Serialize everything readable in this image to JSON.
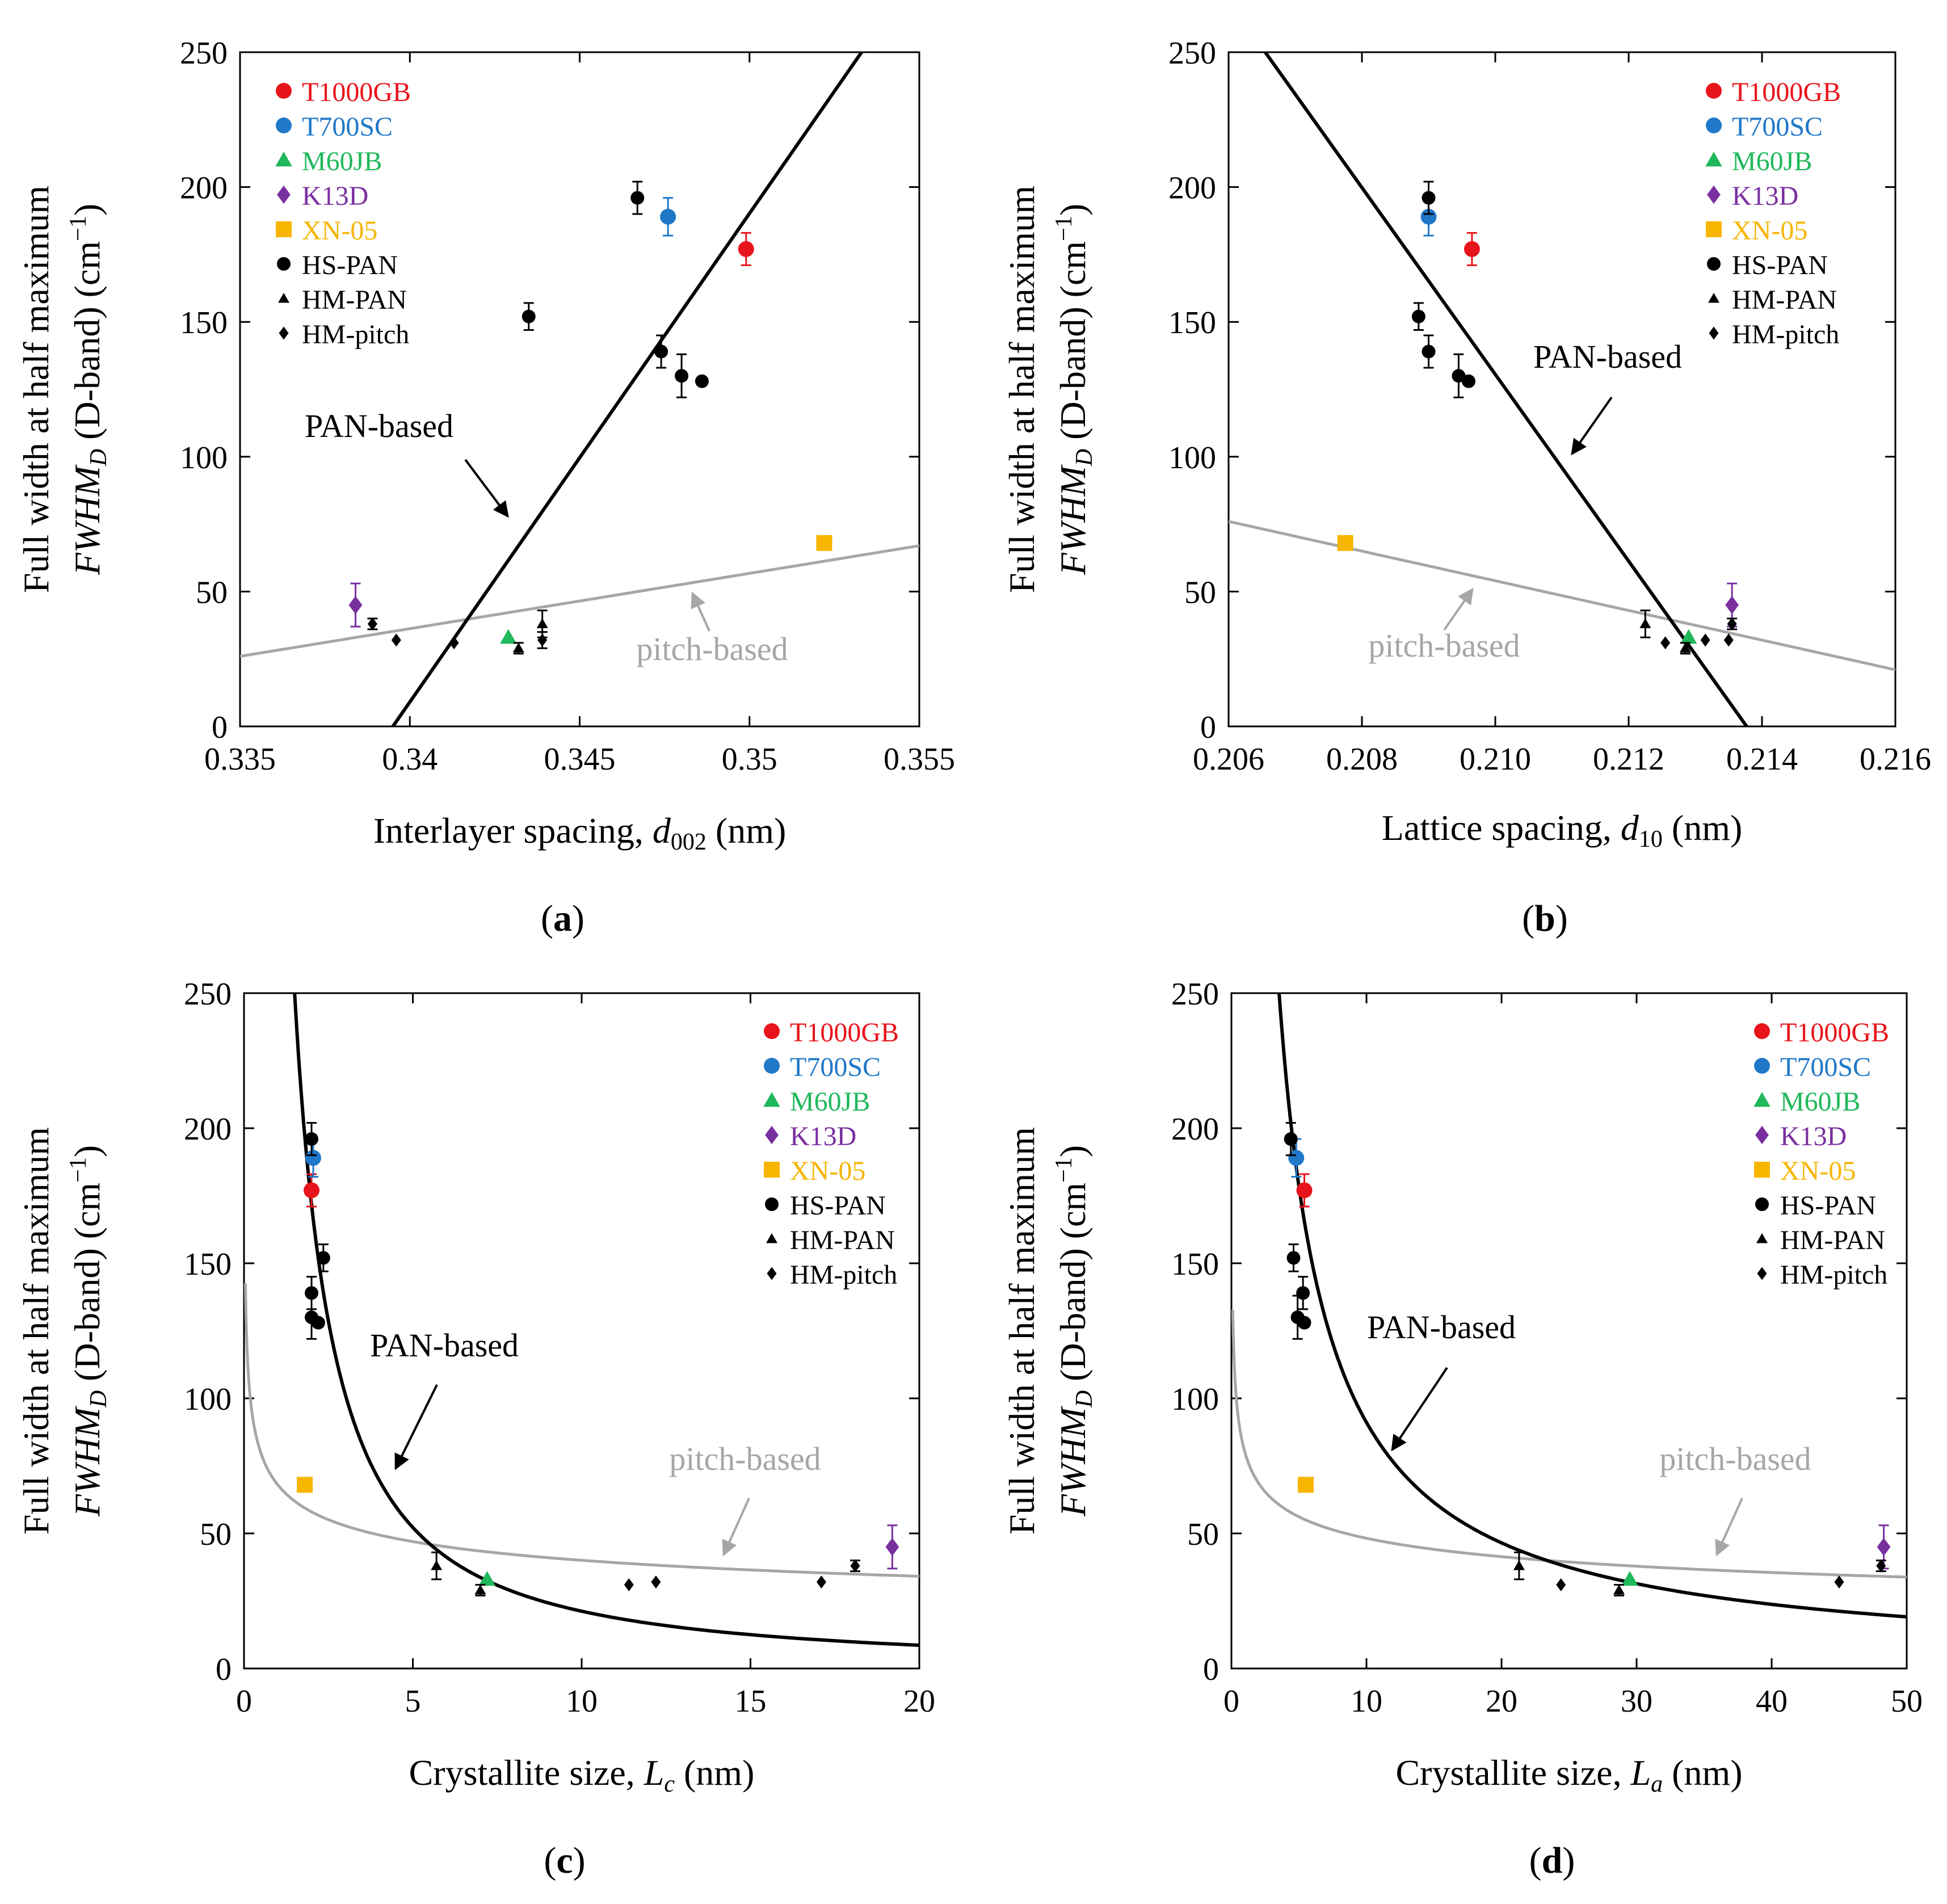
{
  "figure": {
    "colors": {
      "T1000GB": "#e8141b",
      "T700SC": "#1f78c8",
      "M60JB": "#1fb85a",
      "K13D": "#7a2fa0",
      "XN-05": "#f7b500",
      "black": "#000000",
      "pitch_line": "#a6a6a6"
    }
  },
  "chart_data": [
    {
      "id": "a",
      "type": "scatter",
      "panel_label": "a",
      "xlabel": "Interlayer spacing, ",
      "xlabel_italic": "d",
      "xlabel_sub": "002",
      "xlabel_unit": " (nm)",
      "ylabel_line1": "Full width at half maximum",
      "ylabel_line2_italic": "FWHM",
      "ylabel_line2_sub": "D",
      "ylabel_line2_rest": " (D-band) (cm",
      "ylabel_line2_sup": "−1",
      "ylabel_line2_end": ")",
      "xlim": [
        0.335,
        0.355
      ],
      "ylim": [
        0,
        250
      ],
      "xticks": [
        0.335,
        0.34,
        0.345,
        0.35,
        0.355
      ],
      "xtick_labels": [
        "0.335",
        "0.34",
        "0.345",
        "0.35",
        "0.355"
      ],
      "yticks": [
        0,
        50,
        100,
        150,
        200,
        250
      ],
      "ytick_labels": [
        "0",
        "50",
        "100",
        "150",
        "200",
        "250"
      ],
      "legend_position": "top-left",
      "legend": [
        "T1000GB",
        "T700SC",
        "M60JB",
        "K13D",
        "XN-05",
        "HS-PAN",
        "HM-PAN",
        "HM-pitch"
      ],
      "annotations": {
        "pan": "PAN-based",
        "pitch": "pitch-based"
      },
      "fits": {
        "pan": {
          "type": "linear",
          "p1": [
            0.3395,
            0
          ],
          "p2": [
            0.3533,
            250
          ]
        },
        "pitch": {
          "type": "linear",
          "p1": [
            0.335,
            26
          ],
          "p2": [
            0.355,
            67
          ]
        }
      },
      "series": [
        {
          "name": "T1000GB",
          "marker": "circle",
          "color": "T1000GB",
          "points": [
            [
              0.3499,
              177,
              6
            ]
          ]
        },
        {
          "name": "T700SC",
          "marker": "circle",
          "color": "T700SC",
          "points": [
            [
              0.3476,
              189,
              7
            ]
          ]
        },
        {
          "name": "M60JB",
          "marker": "triangle",
          "color": "M60JB",
          "points": [
            [
              0.3429,
              33,
              0
            ]
          ]
        },
        {
          "name": "K13D",
          "marker": "diamond",
          "color": "K13D",
          "points": [
            [
              0.3384,
              45,
              8
            ]
          ]
        },
        {
          "name": "XN-05",
          "marker": "square",
          "color": "XN-05",
          "points": [
            [
              0.3522,
              68,
              0
            ]
          ]
        },
        {
          "name": "HS-PAN",
          "marker": "circle",
          "color": "black",
          "points": [
            [
              0.3467,
              196,
              6
            ],
            [
              0.3435,
              152,
              5
            ],
            [
              0.3474,
              139,
              6
            ],
            [
              0.348,
              130,
              8
            ],
            [
              0.3486,
              128,
              0
            ]
          ]
        },
        {
          "name": "HM-PAN",
          "marker": "triangle",
          "color": "black",
          "points": [
            [
              0.3439,
              38,
              5
            ],
            [
              0.3432,
              29,
              2
            ]
          ]
        },
        {
          "name": "HM-pitch",
          "marker": "diamond",
          "color": "black",
          "points": [
            [
              0.3389,
              38,
              2
            ],
            [
              0.3396,
              32,
              0
            ],
            [
              0.3413,
              31,
              0
            ],
            [
              0.3439,
              32,
              3
            ]
          ]
        }
      ]
    },
    {
      "id": "b",
      "type": "scatter",
      "panel_label": "b",
      "xlabel": "Lattice spacing, ",
      "xlabel_italic": "d",
      "xlabel_sub": "10",
      "xlabel_unit": " (nm)",
      "ylabel_line1": "Full width at half maximum",
      "ylabel_line2_italic": "FWHM",
      "ylabel_line2_sub": "D",
      "ylabel_line2_rest": " (D-band) (cm",
      "ylabel_line2_sup": "−1",
      "ylabel_line2_end": ")",
      "xlim": [
        0.206,
        0.216
      ],
      "ylim": [
        0,
        250
      ],
      "xticks": [
        0.206,
        0.208,
        0.21,
        0.212,
        0.214,
        0.216
      ],
      "xtick_labels": [
        "0.206",
        "0.208",
        "0.210",
        "0.212",
        "0.214",
        "0.216"
      ],
      "yticks": [
        0,
        50,
        100,
        150,
        200,
        250
      ],
      "ytick_labels": [
        "0",
        "50",
        "100",
        "150",
        "200",
        "250"
      ],
      "legend_position": "top-right",
      "legend": [
        "T1000GB",
        "T700SC",
        "M60JB",
        "K13D",
        "XN-05",
        "HS-PAN",
        "HM-PAN",
        "HM-pitch"
      ],
      "annotations": {
        "pan": "PAN-based",
        "pitch": "pitch-based"
      },
      "fits": {
        "pan": {
          "type": "linear",
          "p1": [
            0.20655,
            250
          ],
          "p2": [
            0.21377,
            0
          ]
        },
        "pitch": {
          "type": "linear",
          "p1": [
            0.206,
            76
          ],
          "p2": [
            0.216,
            21
          ]
        }
      },
      "series": [
        {
          "name": "T1000GB",
          "marker": "circle",
          "color": "T1000GB",
          "points": [
            [
              0.20965,
              177,
              6
            ]
          ]
        },
        {
          "name": "T700SC",
          "marker": "circle",
          "color": "T700SC",
          "points": [
            [
              0.209,
              189,
              7
            ]
          ]
        },
        {
          "name": "M60JB",
          "marker": "triangle",
          "color": "M60JB",
          "points": [
            [
              0.2129,
              33,
              0
            ]
          ]
        },
        {
          "name": "K13D",
          "marker": "diamond",
          "color": "K13D",
          "points": [
            [
              0.21355,
              45,
              8
            ]
          ]
        },
        {
          "name": "XN-05",
          "marker": "square",
          "color": "XN-05",
          "points": [
            [
              0.20775,
              68,
              0
            ]
          ]
        },
        {
          "name": "HS-PAN",
          "marker": "circle",
          "color": "black",
          "points": [
            [
              0.209,
              196,
              6
            ],
            [
              0.20885,
              152,
              5
            ],
            [
              0.209,
              139,
              6
            ],
            [
              0.20945,
              130,
              8
            ],
            [
              0.2096,
              128,
              0
            ]
          ]
        },
        {
          "name": "HM-PAN",
          "marker": "triangle",
          "color": "black",
          "points": [
            [
              0.21225,
              38,
              5
            ],
            [
              0.21285,
              29,
              2
            ]
          ]
        },
        {
          "name": "HM-pitch",
          "marker": "diamond",
          "color": "black",
          "points": [
            [
              0.21355,
              38,
              2
            ],
            [
              0.2135,
              32,
              0
            ],
            [
              0.21315,
              32,
              0
            ],
            [
              0.21255,
              31,
              0
            ]
          ]
        }
      ]
    },
    {
      "id": "c",
      "type": "scatter",
      "panel_label": "c",
      "xlabel": "Crystallite size, ",
      "xlabel_italic": "L",
      "xlabel_sub": "c",
      "xlabel_unit": " (nm)",
      "ylabel_line1": "Full width at half maximum",
      "ylabel_line2_italic": "FWHM",
      "ylabel_line2_sub": "D",
      "ylabel_line2_rest": " (D-band) (cm",
      "ylabel_line2_sup": "−1",
      "ylabel_line2_end": ")",
      "xlim": [
        0,
        20
      ],
      "ylim": [
        0,
        250
      ],
      "xticks": [
        0,
        5,
        10,
        15,
        20
      ],
      "xtick_labels": [
        "0",
        "5",
        "10",
        "15",
        "20"
      ],
      "yticks": [
        0,
        50,
        100,
        150,
        200,
        250
      ],
      "ytick_labels": [
        "0",
        "50",
        "100",
        "150",
        "200",
        "250"
      ],
      "legend_position": "top-right",
      "legend": [
        "T1000GB",
        "T700SC",
        "M60JB",
        "K13D",
        "XN-05",
        "HS-PAN",
        "HM-PAN",
        "HM-pitch"
      ],
      "annotations": {
        "pan": "PAN-based",
        "pitch": "pitch-based"
      },
      "fits": {
        "pan": {
          "type": "power",
          "a": 423,
          "b": 1.3
        },
        "pitch": {
          "type": "power",
          "a": 68,
          "b": 0.23
        }
      },
      "series": [
        {
          "name": "T1000GB",
          "marker": "circle",
          "color": "T1000GB",
          "points": [
            [
              2.0,
              177,
              6
            ]
          ]
        },
        {
          "name": "T700SC",
          "marker": "circle",
          "color": "T700SC",
          "points": [
            [
              2.05,
              189,
              7
            ]
          ]
        },
        {
          "name": "M60JB",
          "marker": "triangle",
          "color": "M60JB",
          "points": [
            [
              7.2,
              33,
              0
            ]
          ]
        },
        {
          "name": "K13D",
          "marker": "diamond",
          "color": "K13D",
          "points": [
            [
              19.2,
              45,
              8
            ]
          ]
        },
        {
          "name": "XN-05",
          "marker": "square",
          "color": "XN-05",
          "points": [
            [
              1.8,
              68,
              0
            ]
          ]
        },
        {
          "name": "HS-PAN",
          "marker": "circle",
          "color": "black",
          "points": [
            [
              2.0,
              196,
              6
            ],
            [
              2.35,
              152,
              5
            ],
            [
              2.0,
              139,
              6
            ],
            [
              2.0,
              130,
              8
            ],
            [
              2.2,
              128,
              0
            ]
          ]
        },
        {
          "name": "HM-PAN",
          "marker": "triangle",
          "color": "black",
          "points": [
            [
              5.7,
              38,
              5
            ],
            [
              7.0,
              29,
              2
            ]
          ]
        },
        {
          "name": "HM-pitch",
          "marker": "diamond",
          "color": "black",
          "points": [
            [
              18.1,
              38,
              2
            ],
            [
              17.1,
              32,
              0
            ],
            [
              12.2,
              32,
              0
            ],
            [
              11.4,
              31,
              0
            ]
          ]
        }
      ]
    },
    {
      "id": "d",
      "type": "scatter",
      "panel_label": "d",
      "xlabel": "Crystallite size, ",
      "xlabel_italic": "L",
      "xlabel_sub": "a",
      "xlabel_unit": " (nm)",
      "ylabel_line1": "Full width at half maximum",
      "ylabel_line2_italic": "FWHM",
      "ylabel_line2_sub": "D",
      "ylabel_line2_rest": " (D-band) (cm",
      "ylabel_line2_sup": "−1",
      "ylabel_line2_end": ")",
      "xlim": [
        0,
        50
      ],
      "ylim": [
        0,
        250
      ],
      "xticks": [
        0,
        10,
        20,
        30,
        40,
        50
      ],
      "xtick_labels": [
        "0",
        "10",
        "20",
        "30",
        "40",
        "50"
      ],
      "yticks": [
        0,
        50,
        100,
        150,
        200,
        250
      ],
      "ytick_labels": [
        "0",
        "50",
        "100",
        "150",
        "200",
        "250"
      ],
      "legend_position": "top-right",
      "legend": [
        "T1000GB",
        "T700SC",
        "M60JB",
        "K13D",
        "XN-05",
        "HS-PAN",
        "HM-PAN",
        "HM-pitch"
      ],
      "annotations": {
        "pan": "PAN-based",
        "pitch": "pitch-based"
      },
      "fits": {
        "pan": {
          "type": "power",
          "a": 850,
          "b": 0.97
        },
        "pitch": {
          "type": "power",
          "a": 80,
          "b": 0.22
        }
      },
      "series": [
        {
          "name": "T1000GB",
          "marker": "circle",
          "color": "T1000GB",
          "points": [
            [
              5.4,
              177,
              6
            ]
          ]
        },
        {
          "name": "T700SC",
          "marker": "circle",
          "color": "T700SC",
          "points": [
            [
              4.8,
              189,
              7
            ]
          ]
        },
        {
          "name": "M60JB",
          "marker": "triangle",
          "color": "M60JB",
          "points": [
            [
              29.5,
              33,
              0
            ]
          ]
        },
        {
          "name": "K13D",
          "marker": "diamond",
          "color": "K13D",
          "points": [
            [
              48.3,
              45,
              8
            ]
          ]
        },
        {
          "name": "XN-05",
          "marker": "square",
          "color": "XN-05",
          "points": [
            [
              5.5,
              68,
              0
            ]
          ]
        },
        {
          "name": "HS-PAN",
          "marker": "circle",
          "color": "black",
          "points": [
            [
              4.4,
              196,
              6
            ],
            [
              4.6,
              152,
              5
            ],
            [
              5.3,
              139,
              6
            ],
            [
              4.9,
              130,
              8
            ],
            [
              5.4,
              128,
              0
            ]
          ]
        },
        {
          "name": "HM-PAN",
          "marker": "triangle",
          "color": "black",
          "points": [
            [
              21.3,
              38,
              5
            ],
            [
              28.7,
              29,
              2
            ]
          ]
        },
        {
          "name": "HM-pitch",
          "marker": "diamond",
          "color": "black",
          "points": [
            [
              48.1,
              38,
              2
            ],
            [
              45.0,
              32,
              0
            ],
            [
              24.4,
              31,
              0
            ]
          ]
        }
      ]
    }
  ]
}
